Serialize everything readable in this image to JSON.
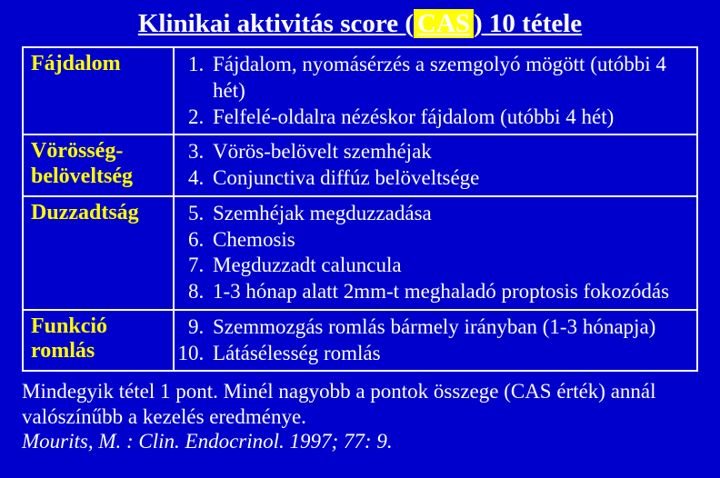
{
  "colors": {
    "background": "#0000cc",
    "text": "#ffffff",
    "category": "#ffff00",
    "border": "#ffffff",
    "highlight_bg": "#ffff00"
  },
  "typography": {
    "family": "Times New Roman",
    "title_size_pt": 29,
    "category_size_pt": 24,
    "item_size_pt": 23,
    "footnote_size_pt": 23
  },
  "title": {
    "pre": "Klinikai aktivitás score (",
    "highlight": "CAS",
    "post": ") 10 tétele"
  },
  "rows": [
    {
      "category": "Fájdalom",
      "start": 1,
      "items": [
        "Fájdalom, nyomásérzés a szemgolyó mögött (utóbbi 4 hét)",
        "Felfelé-oldalra nézéskor fájdalom (utóbbi 4 hét)"
      ]
    },
    {
      "category": "Vörösség-belöveltség",
      "start": 3,
      "items": [
        "Vörös-belövelt szemhéjak",
        "Conjunctiva diffúz belöveltsége"
      ]
    },
    {
      "category": "Duzzadtság",
      "start": 5,
      "items": [
        "Szemhéjak megduzzadása",
        "Chemosis",
        "Megduzzadt caluncula",
        "1-3 hónap alatt 2mm-t meghaladó proptosis fokozódás"
      ]
    },
    {
      "category": "Funkció romlás",
      "start": 9,
      "items": [
        "Szemmozgás romlás bármely irányban (1-3 hónapja)",
        "Látásélesség romlás"
      ]
    }
  ],
  "footnote": {
    "line": "Mindegyik tétel 1 pont. Minél nagyobb a pontok összege (CAS érték) annál valószínűbb a kezelés eredménye.",
    "citation": "Mourits, M. : Clin. Endocrinol. 1997; 77: 9."
  }
}
